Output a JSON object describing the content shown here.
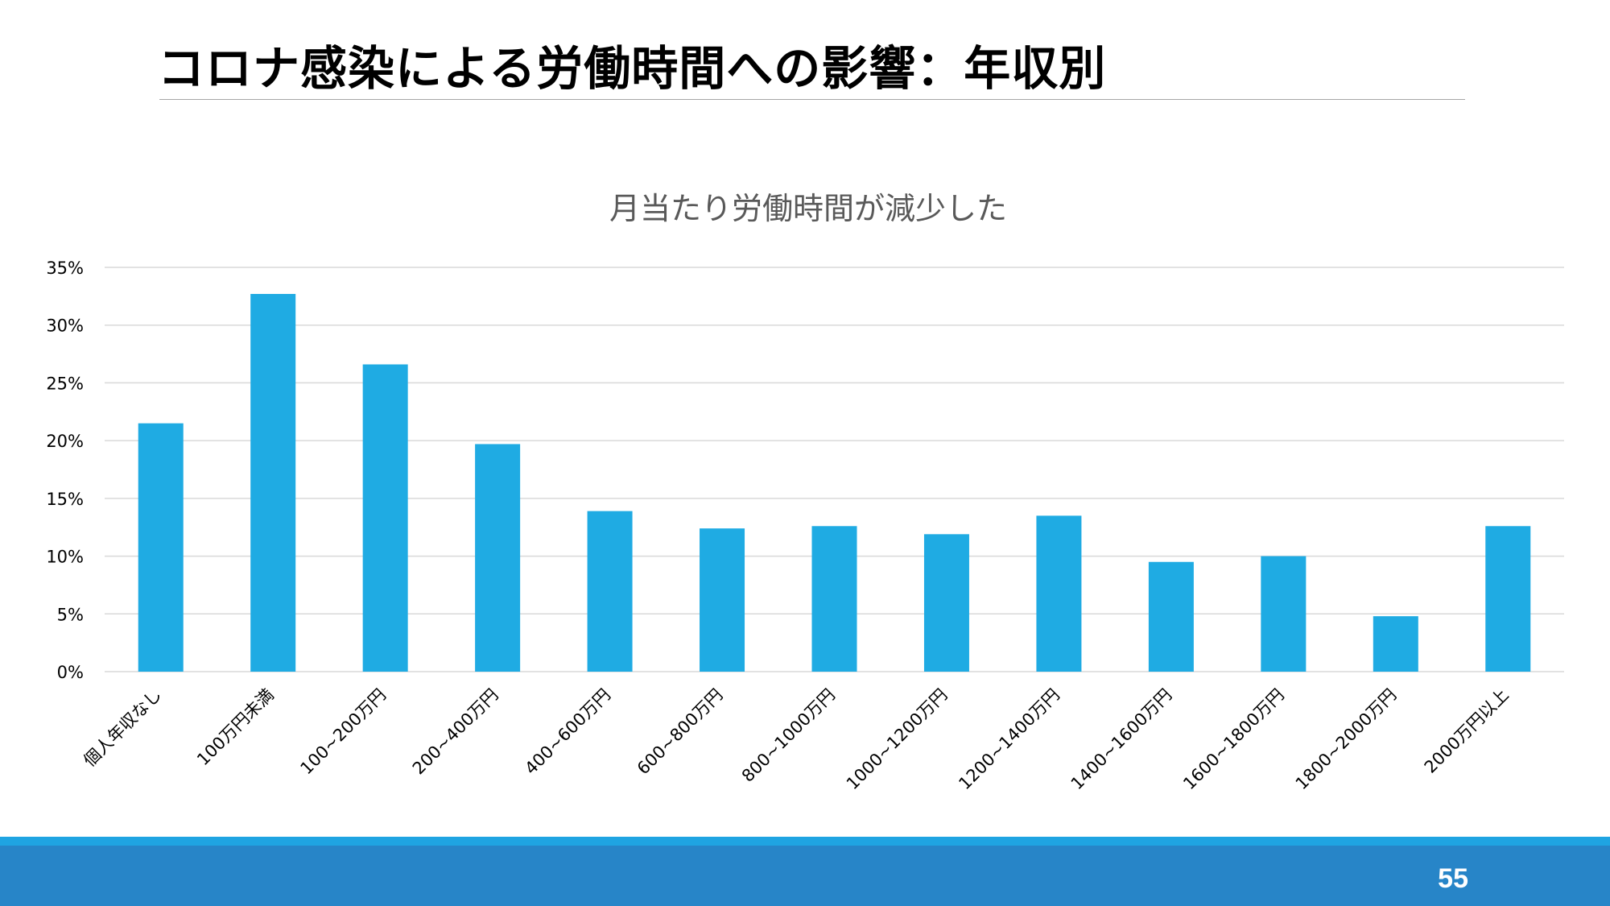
{
  "slide": {
    "title": "コロナ感染による労働時間への影響：年収別",
    "page_number": "55"
  },
  "colors": {
    "bar": "#1fabe3",
    "footer_band": "#2785c8",
    "footer_stripe": "#1fa4e2",
    "gridline": "#d9d9d9"
  },
  "chart_data": {
    "type": "bar",
    "title": "月当たり労働時間が減少した",
    "xlabel": "",
    "ylabel": "",
    "categories": [
      "個人年収なし",
      "100万円未満",
      "100~200万円",
      "200~400万円",
      "400~600万円",
      "600~800万円",
      "800~1000万円",
      "1000~1200万円",
      "1200~1400万円",
      "1400~1600万円",
      "1600~1800万円",
      "1800~2000万円",
      "2000万円以上"
    ],
    "values": [
      21.5,
      32.7,
      26.6,
      19.7,
      13.9,
      12.4,
      12.6,
      11.9,
      13.5,
      9.5,
      10.0,
      4.8,
      12.6
    ],
    "ylim": [
      0,
      35
    ],
    "yticks": [
      0,
      5,
      10,
      15,
      20,
      25,
      30,
      35
    ],
    "y_tick_suffix": "%",
    "grid": true,
    "legend": "none"
  }
}
